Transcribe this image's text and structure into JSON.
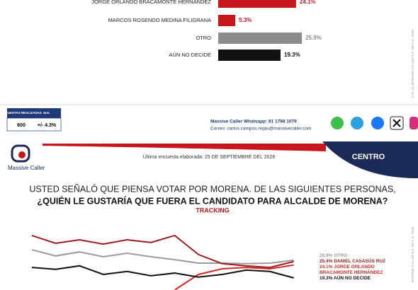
{
  "chart_data": [
    {
      "type": "hbar",
      "categories": [
        "JORGE ORLANDO BRACAMONTE HERNÁNDEZ",
        "MARCOS ROSENDO MEDINA FILIGRANA",
        "OTRO",
        "AÚN NO DECIDE"
      ],
      "values": [
        24.1,
        5.3,
        25.9,
        19.3
      ],
      "value_labels": [
        "24.1%",
        "5.3%",
        "25.9%",
        "19.3%"
      ],
      "colors": [
        "#c8161d",
        "#c8161d",
        "#8c8c8c",
        "#111111"
      ]
    },
    {
      "type": "line",
      "title": "USTED SEÑALÓ QUE PIENSA VOTAR POR MORENA. DE LAS SIGUIENTES PERSONAS,",
      "subtitle": "¿QUIÉN LE GUSTARÍA QUE FUERA EL CANDIDATO PARA ALCALDE DE MORENA?",
      "annotation": "TRACKING",
      "categories": [
        null,
        null,
        null,
        null,
        null,
        null,
        null,
        null,
        null,
        null,
        null,
        null
      ],
      "ylim": [
        14,
        37.2
      ],
      "series": [
        {
          "name": "25.9% OTRO",
          "color": "#9a9a9a",
          "values": [
            29.8,
            27.5,
            29.0,
            27.2,
            28.5,
            27.2,
            26.1,
            24.8,
            24.8,
            24.6,
            24.8,
            25.9
          ]
        },
        {
          "name": "25.4% DANIEL CASASÚS RUZ",
          "color": "#9e1b1f",
          "values": [
            35.1,
            32.2,
            33.5,
            31.9,
            33.5,
            32.5,
            35.1,
            28.0,
            24.6,
            23.8,
            23.2,
            25.4
          ]
        },
        {
          "name": "24.1% JORGE ORLANDO BRACAMONTE HERNÁNDEZ",
          "color": "#d42a24",
          "values": [
            null,
            null,
            null,
            null,
            null,
            null,
            14.8,
            20.6,
            22.7,
            23.2,
            22.7,
            24.1
          ]
        },
        {
          "name": "19.3% AÚN NO DECIDE",
          "color": "#111111",
          "values": [
            23.2,
            22.5,
            23.8,
            20.6,
            21.7,
            20.1,
            21.1,
            19.6,
            20.6,
            22.2,
            21.7,
            19.3
          ]
        }
      ]
    }
  ],
  "footer": {
    "table": {
      "headers": [
        "ENCUESTAS REALIZADAS",
        "M.E."
      ],
      "row": [
        "600",
        "+/- 4.3%"
      ]
    },
    "whatsapp": "Massive Caller Whatsapp: 81 1798 1079",
    "email": "Correo: carlos.campos.riojas@massivecaller.com"
  },
  "header": {
    "logo": "Massive Caller",
    "date": "Última encuesta elaborada: 25 DE SEPTIEMBRE DEL 2026",
    "region": "CENTRO"
  },
  "side_notes": [
    "D.R. (C) MASSIVE CALLER S.A. DE C.V., 2026",
    "MASSIVE CALLER S.A. DE C.V., 2026"
  ]
}
